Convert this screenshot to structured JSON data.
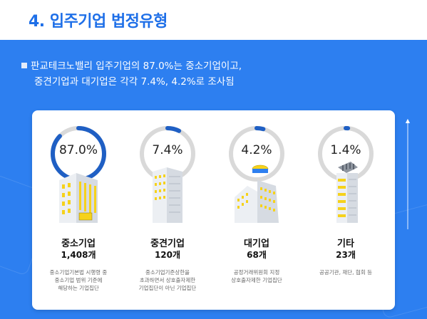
{
  "title": "4. 입주기업 법정유형",
  "summary": {
    "line1": "판교테크노밸리 입주기업의 87.0%는 중소기업이고,",
    "line2": "중견기업과 대기업은 각각 7.4%, 4.2%로 조사됨"
  },
  "colors": {
    "accent": "#2d7ff0",
    "ring_fill": "#1f5fc4",
    "ring_bg": "#d9d9d9",
    "building_yellow": "#f6d21b"
  },
  "chart_data": {
    "type": "donut-set",
    "items": [
      {
        "name": "중소기업",
        "percent_label": "87.0%",
        "percent": 87.0,
        "count": "1,408개",
        "desc": [
          "중소기업기본법 시행령 중",
          "중소기업 범위 기준에",
          "해당하는 기업집단"
        ],
        "icon": "small-business-building-icon"
      },
      {
        "name": "중견기업",
        "percent_label": "7.4%",
        "percent": 7.4,
        "count": "120개",
        "desc": [
          "중소기업기준상한을",
          "초과하면서 상호출자제한",
          "기업집단이 아닌 기업집단"
        ],
        "icon": "midsize-business-tower-icon"
      },
      {
        "name": "대기업",
        "percent_label": "4.2%",
        "percent": 4.2,
        "count": "68개",
        "desc": [
          "공정거래위원회 지정",
          "상호출자제한 기업집단"
        ],
        "icon": "large-business-complex-icon"
      },
      {
        "name": "기타",
        "percent_label": "1.4%",
        "percent": 1.4,
        "count": "23개",
        "desc": [
          "공공기관, 재단, 협회 등"
        ],
        "icon": "other-organization-building-icon"
      }
    ]
  }
}
